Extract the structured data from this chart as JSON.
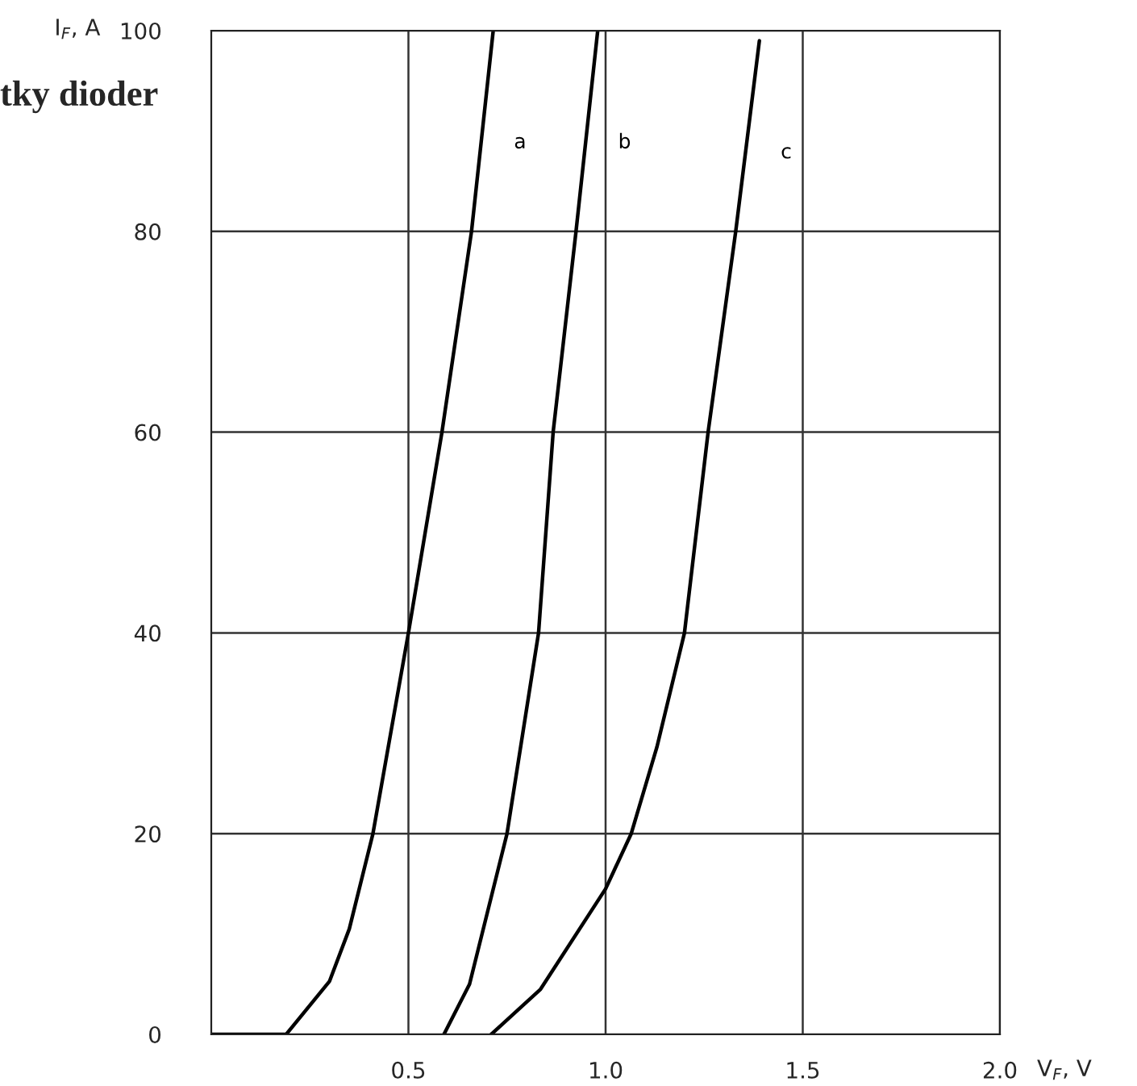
{
  "chart_data": {
    "type": "line",
    "title": "tky dioder",
    "xlabel": "V$_{F}$, V",
    "ylabel": "I$_{F}$, A",
    "series": [
      {
        "name": "a",
        "color": "#000000",
        "x": [
          0.0,
          0.19,
          0.3,
          0.35,
          0.41,
          0.5,
          0.585,
          0.66,
          0.715
        ],
        "values": [
          0,
          0,
          5.3,
          10.5,
          20,
          40,
          60,
          80,
          100
        ]
      },
      {
        "name": "b",
        "color": "#000000",
        "x": [
          0.59,
          0.655,
          0.75,
          0.83,
          0.867,
          0.925,
          0.98
        ],
        "values": [
          0,
          5,
          20,
          40,
          60,
          80,
          100
        ]
      },
      {
        "name": "c",
        "color": "#000000",
        "x": [
          0.71,
          0.835,
          1.0,
          1.065,
          1.13,
          1.2,
          1.26,
          1.33,
          1.39
        ],
        "values": [
          0,
          4.5,
          14.5,
          20,
          28.6,
          40,
          60,
          80,
          99
        ]
      }
    ],
    "xlim": [
      0,
      2.0
    ],
    "ylim": [
      0,
      100
    ],
    "xticks": [
      {
        "value": 0.5,
        "label": "0.5"
      },
      {
        "value": 1.0,
        "label": "1.0"
      },
      {
        "value": 1.5,
        "label": "1.5"
      },
      {
        "value": 2.0,
        "label": "2.0"
      }
    ],
    "yticks": [
      0,
      20,
      40,
      60,
      80,
      100
    ],
    "grid": true,
    "line_style": "solid",
    "marker": "none"
  }
}
